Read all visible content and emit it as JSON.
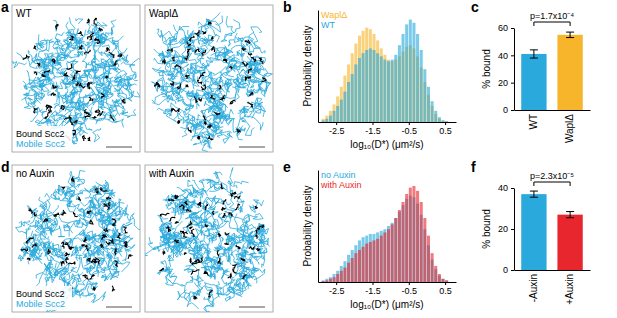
{
  "chart_data": [
    {
      "type": "image",
      "panel": "a",
      "images": [
        "WT",
        "WaplΔ"
      ],
      "series": [
        {
          "name": "Bound Scc2",
          "color": "#000000"
        },
        {
          "name": "Mobile Scc2",
          "color": "#29a9dc"
        }
      ]
    },
    {
      "type": "histogram",
      "panel": "b",
      "x_label": "log₁₀(D*) (μm²/s)",
      "y_label": "Probability density",
      "bins": [
        -2.9,
        -2.8,
        -2.7,
        -2.6,
        -2.5,
        -2.4,
        -2.3,
        -2.2,
        -2.1,
        -2,
        -1.9,
        -1.8,
        -1.7,
        -1.6,
        -1.5,
        -1.4,
        -1.3,
        -1.2,
        -1.1,
        -1,
        -0.9,
        -0.8,
        -0.7,
        -0.6,
        -0.5,
        -0.4,
        -0.3,
        -0.2,
        -0.1,
        0,
        0.1,
        0.2,
        0.3,
        0.4,
        0.5,
        0.6,
        0.7
      ],
      "series": [
        {
          "name": "WaplΔ",
          "color": "#f7b52c",
          "values": [
            0.02,
            0.04,
            0.07,
            0.11,
            0.16,
            0.22,
            0.29,
            0.36,
            0.43,
            0.49,
            0.54,
            0.57,
            0.59,
            0.58,
            0.55,
            0.51,
            0.46,
            0.42,
            0.39,
            0.38,
            0.39,
            0.41,
            0.44,
            0.47,
            0.48,
            0.46,
            0.41,
            0.34,
            0.25,
            0.17,
            0.1,
            0.05,
            0.02,
            0.01,
            0.005,
            0
          ]
        },
        {
          "name": "WT",
          "color": "#29a9dc",
          "values": [
            0.01,
            0.02,
            0.04,
            0.07,
            0.1,
            0.14,
            0.19,
            0.25,
            0.3,
            0.36,
            0.4,
            0.43,
            0.45,
            0.46,
            0.45,
            0.43,
            0.41,
            0.39,
            0.38,
            0.39,
            0.42,
            0.48,
            0.55,
            0.61,
            0.64,
            0.62,
            0.55,
            0.45,
            0.33,
            0.22,
            0.13,
            0.07,
            0.03,
            0.01,
            0.005,
            0
          ]
        }
      ],
      "xlim": [
        -3,
        0.8
      ],
      "xticks": [
        -2.5,
        -1.5,
        -0.5,
        0.5
      ],
      "ylim": [
        0,
        0.7
      ],
      "tick_labels": "x",
      "legend": "top-left"
    },
    {
      "type": "bar",
      "panel": "c",
      "y_label": "% bound",
      "categories": [
        "WT",
        "WaplΔ"
      ],
      "values": [
        41,
        55
      ],
      "errors": [
        3,
        2
      ],
      "colors": [
        "#29a9dc",
        "#f7b52c"
      ],
      "ylim": [
        0,
        60
      ],
      "yticks": [
        0,
        20,
        40,
        60
      ],
      "annotation": "p=1.7x10⁻⁴"
    },
    {
      "type": "image",
      "panel": "d",
      "images": [
        "no Auxin",
        "with Auxin"
      ],
      "series": [
        {
          "name": "Bound Scc2",
          "color": "#000000"
        },
        {
          "name": "Mobile Scc2",
          "color": "#29a9dc"
        }
      ]
    },
    {
      "type": "histogram",
      "panel": "e",
      "x_label": "log₁₀(D*) (μm²/s)",
      "y_label": "Probability density",
      "bins": [
        -2.9,
        -2.8,
        -2.7,
        -2.6,
        -2.5,
        -2.4,
        -2.3,
        -2.2,
        -2.1,
        -2,
        -1.9,
        -1.8,
        -1.7,
        -1.6,
        -1.5,
        -1.4,
        -1.3,
        -1.2,
        -1.1,
        -1,
        -0.9,
        -0.8,
        -0.7,
        -0.6,
        -0.5,
        -0.4,
        -0.3,
        -0.2,
        -0.1,
        0,
        0.1,
        0.2,
        0.3,
        0.4,
        0.5,
        0.6,
        0.7
      ],
      "series": [
        {
          "name": "no Auxin",
          "color": "#29a9dc",
          "values": [
            0.01,
            0.02,
            0.03,
            0.05,
            0.07,
            0.1,
            0.13,
            0.17,
            0.2,
            0.23,
            0.26,
            0.28,
            0.29,
            0.3,
            0.3,
            0.31,
            0.32,
            0.33,
            0.35,
            0.37,
            0.4,
            0.44,
            0.48,
            0.52,
            0.54,
            0.53,
            0.49,
            0.42,
            0.33,
            0.23,
            0.14,
            0.08,
            0.04,
            0.02,
            0.01,
            0
          ]
        },
        {
          "name": "with Auxin",
          "color": "#e8262d",
          "values": [
            0.005,
            0.01,
            0.02,
            0.03,
            0.05,
            0.07,
            0.09,
            0.12,
            0.15,
            0.18,
            0.2,
            0.22,
            0.24,
            0.25,
            0.26,
            0.27,
            0.29,
            0.31,
            0.33,
            0.36,
            0.4,
            0.45,
            0.5,
            0.55,
            0.59,
            0.6,
            0.57,
            0.5,
            0.4,
            0.29,
            0.18,
            0.1,
            0.05,
            0.02,
            0.01,
            0
          ]
        }
      ],
      "xlim": [
        -3,
        0.8
      ],
      "xticks": [
        -2.5,
        -1.5,
        -0.5,
        0.5
      ],
      "ylim": [
        0,
        0.7
      ],
      "tick_labels": "x",
      "legend": "top-left"
    },
    {
      "type": "bar",
      "panel": "f",
      "y_label": "% bound",
      "categories": [
        "-Auxin",
        "+Auxin"
      ],
      "values": [
        37,
        27
      ],
      "errors": [
        1.5,
        1.5
      ],
      "colors": [
        "#29a9dc",
        "#e8262d"
      ],
      "ylim": [
        0,
        40
      ],
      "yticks": [
        0,
        20,
        40
      ],
      "annotation": "p=2.3x10⁻⁵"
    }
  ]
}
